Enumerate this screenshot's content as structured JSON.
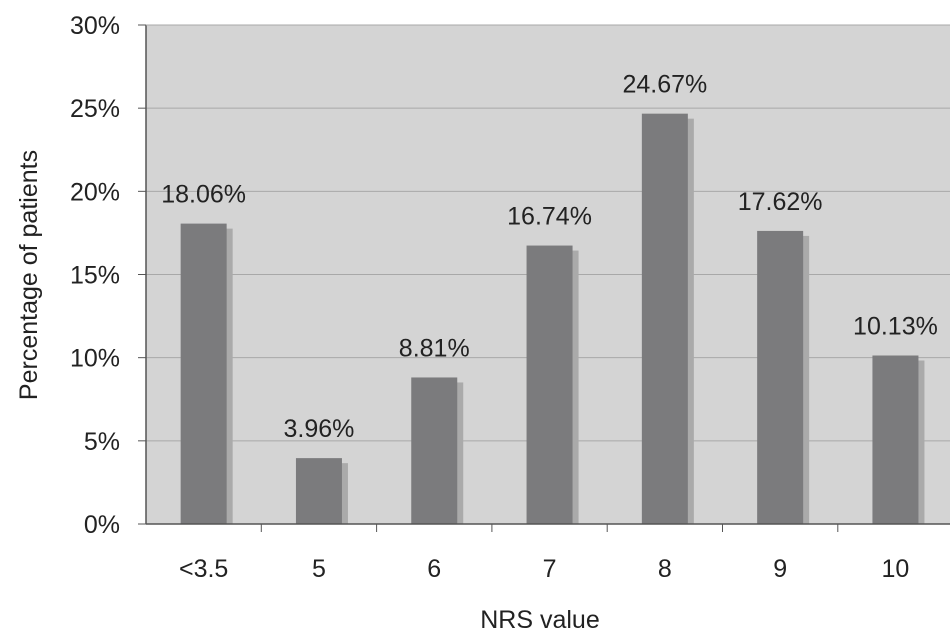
{
  "chart_data": {
    "type": "bar",
    "title": "",
    "xlabel": "NRS value",
    "ylabel": "Percentage of patients",
    "categories": [
      "<3.5",
      "5",
      "6",
      "7",
      "8",
      "9",
      "10"
    ],
    "values": [
      18.06,
      3.96,
      8.81,
      16.74,
      24.67,
      17.62,
      10.13
    ],
    "data_labels": [
      "18.06%",
      "3.96%",
      "8.81%",
      "16.74%",
      "24.67%",
      "17.62%",
      "10.13%"
    ],
    "ylim": [
      0,
      30
    ],
    "yticks": [
      0,
      5,
      10,
      15,
      20,
      25,
      30
    ],
    "ytick_labels": [
      "0%",
      "5%",
      "10%",
      "15%",
      "20%",
      "25%",
      "30%"
    ],
    "grid": true,
    "legend": "none",
    "colors": {
      "plot_background": "#d4d4d4",
      "bar": "#7b7b7d",
      "bar_shadow": "#aaaaaa",
      "gridline": "#a8a8a8",
      "axis": "#555555"
    }
  }
}
